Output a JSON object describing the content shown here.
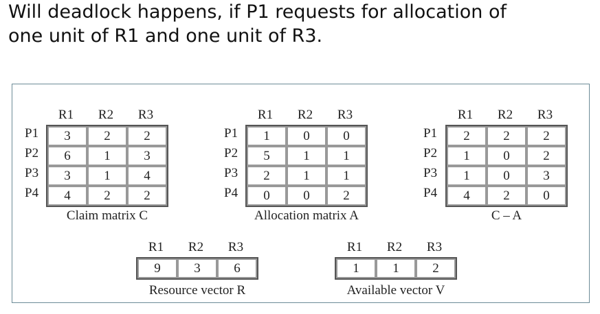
{
  "question": {
    "line1": "Will deadlock happens, if P1 requests for allocation of",
    "line2": "one unit of R1 and one unit of R3."
  },
  "columns": [
    "R1",
    "R2",
    "R3"
  ],
  "rows": [
    "P1",
    "P2",
    "P3",
    "P4"
  ],
  "claim_matrix": {
    "caption": "Claim matrix C",
    "values": [
      [
        3,
        2,
        2
      ],
      [
        6,
        1,
        3
      ],
      [
        3,
        1,
        4
      ],
      [
        4,
        2,
        2
      ]
    ]
  },
  "allocation_matrix": {
    "caption": "Allocation matrix A",
    "values": [
      [
        1,
        0,
        0
      ],
      [
        5,
        1,
        1
      ],
      [
        2,
        1,
        1
      ],
      [
        0,
        0,
        2
      ]
    ]
  },
  "need_matrix": {
    "caption": "C – A",
    "values": [
      [
        2,
        2,
        2
      ],
      [
        1,
        0,
        2
      ],
      [
        1,
        0,
        3
      ],
      [
        4,
        2,
        0
      ]
    ]
  },
  "resource_vector": {
    "caption": "Resource vector R",
    "values": [
      9,
      3,
      6
    ]
  },
  "available_vector": {
    "caption": "Available vector V",
    "values": [
      1,
      1,
      2
    ]
  }
}
